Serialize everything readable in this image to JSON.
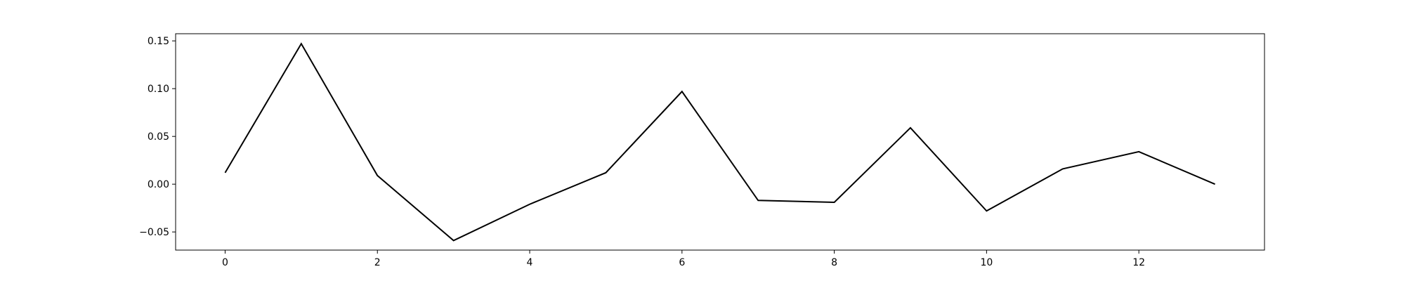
{
  "chart_data": {
    "type": "line",
    "title": "",
    "xlabel": "",
    "ylabel": "",
    "xlim": [
      -0.65,
      13.65
    ],
    "ylim": [
      -0.069,
      0.1575
    ],
    "xticks": [
      0,
      2,
      4,
      6,
      8,
      10,
      12
    ],
    "xtick_labels": [
      "0",
      "2",
      "4",
      "6",
      "8",
      "10",
      "12"
    ],
    "yticks": [
      -0.05,
      0.0,
      0.05,
      0.1,
      0.15
    ],
    "ytick_labels": [
      "−0.05",
      "0.00",
      "0.05",
      "0.10",
      "0.15"
    ],
    "grid": false,
    "legend": false,
    "series": [
      {
        "color": "#000000",
        "x": [
          0,
          1,
          2,
          3,
          4,
          5,
          6,
          7,
          8,
          9,
          10,
          11,
          12,
          13
        ],
        "values": [
          0.012,
          0.147,
          0.009,
          -0.059,
          -0.021,
          0.012,
          0.097,
          -0.017,
          -0.019,
          0.059,
          -0.028,
          0.016,
          0.034,
          0.0
        ]
      }
    ]
  }
}
